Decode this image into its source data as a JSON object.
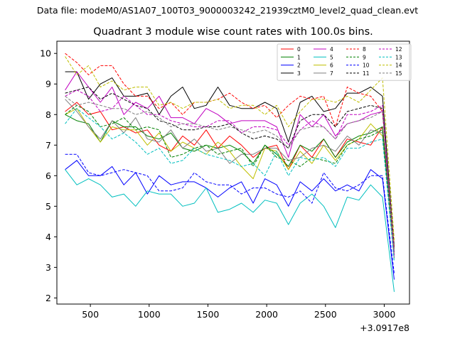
{
  "chart_data": {
    "type": "line",
    "suptitle": "Data file: modeM0/AS1A07_100T03_9000003242_21939cztM0_level2_quad_clean.evt",
    "title": "Quadrant 3 module wise count rates with 100.0s bins.",
    "xlabel": "",
    "ylabel": "",
    "x_offset_label": "+3.0917e8",
    "xlim": [
      215,
      3215
    ],
    "ylim": [
      1.8,
      10.4
    ],
    "xticks": [
      500,
      1000,
      1500,
      2000,
      2500,
      3000
    ],
    "yticks": [
      2,
      3,
      4,
      5,
      6,
      7,
      8,
      9,
      10
    ],
    "x": [
      285,
      385,
      485,
      585,
      685,
      785,
      885,
      985,
      1085,
      1185,
      1285,
      1385,
      1485,
      1585,
      1685,
      1785,
      1885,
      1985,
      2085,
      2185,
      2285,
      2385,
      2485,
      2585,
      2685,
      2785,
      2885,
      2985,
      3085
    ],
    "legend_position": "upper right",
    "series": [
      {
        "name": "0",
        "color": "#ff0000",
        "dash": "solid",
        "values": [
          8.1,
          8.4,
          8.0,
          8.1,
          7.5,
          7.6,
          7.4,
          7.5,
          7.0,
          6.8,
          7.3,
          7.0,
          7.5,
          6.9,
          7.3,
          7.0,
          6.6,
          6.9,
          7.0,
          6.2,
          7.0,
          6.6,
          7.2,
          6.6,
          7.2,
          7.1,
          7.0,
          7.6,
          3.6
        ]
      },
      {
        "name": "1",
        "color": "#008000",
        "dash": "solid",
        "values": [
          8.0,
          7.8,
          7.7,
          7.1,
          7.8,
          7.6,
          7.6,
          7.3,
          7.2,
          7.4,
          6.9,
          6.8,
          7.0,
          6.9,
          7.0,
          6.8,
          6.4,
          7.0,
          6.7,
          6.3,
          7.0,
          6.8,
          7.2,
          6.6,
          7.1,
          7.3,
          7.4,
          7.6,
          3.4
        ]
      },
      {
        "name": "2",
        "color": "#0000ff",
        "dash": "solid",
        "values": [
          6.2,
          6.5,
          6.0,
          6.0,
          6.3,
          5.7,
          6.1,
          5.4,
          6.0,
          5.7,
          5.8,
          5.8,
          5.6,
          5.3,
          5.6,
          5.8,
          5.1,
          5.9,
          5.7,
          5.0,
          5.8,
          5.5,
          5.9,
          5.5,
          5.7,
          5.5,
          6.2,
          5.9,
          2.6
        ]
      },
      {
        "name": "3",
        "color": "#000000",
        "dash": "solid",
        "values": [
          9.4,
          9.4,
          8.5,
          9.0,
          9.2,
          8.6,
          8.6,
          8.7,
          8.0,
          8.6,
          8.9,
          8.2,
          8.3,
          8.9,
          8.3,
          8.2,
          8.2,
          8.4,
          8.2,
          7.1,
          8.4,
          8.6,
          8.1,
          8.2,
          8.7,
          8.7,
          8.9,
          8.6,
          3.6
        ]
      },
      {
        "name": "4",
        "color": "#c000c0",
        "dash": "solid",
        "values": [
          8.8,
          9.4,
          8.9,
          8.4,
          8.9,
          8.0,
          8.4,
          8.2,
          8.6,
          7.9,
          7.9,
          7.7,
          8.2,
          8.0,
          7.7,
          7.8,
          7.8,
          7.8,
          7.6,
          6.6,
          8.0,
          7.6,
          8.0,
          7.3,
          7.7,
          7.8,
          8.0,
          8.1,
          3.3
        ]
      },
      {
        "name": "5",
        "color": "#00bfbf",
        "dash": "solid",
        "values": [
          6.2,
          5.7,
          5.9,
          5.7,
          5.3,
          5.4,
          5.0,
          5.5,
          5.4,
          5.4,
          5.0,
          5.1,
          5.6,
          4.8,
          4.9,
          5.1,
          4.8,
          5.2,
          5.1,
          4.4,
          5.1,
          5.4,
          5.0,
          4.3,
          5.3,
          5.2,
          5.7,
          5.3,
          2.2
        ]
      },
      {
        "name": "6",
        "color": "#bfbf00",
        "dash": "solid",
        "values": [
          8.0,
          8.2,
          7.6,
          7.1,
          7.6,
          7.5,
          7.5,
          7.0,
          7.4,
          6.8,
          7.1,
          6.9,
          6.7,
          7.1,
          6.8,
          6.3,
          5.9,
          6.9,
          6.8,
          6.2,
          6.8,
          6.4,
          7.0,
          6.5,
          7.0,
          7.2,
          7.7,
          7.3,
          3.6
        ]
      },
      {
        "name": "7",
        "color": "#7f7f7f",
        "dash": "solid",
        "values": [
          8.5,
          8.1,
          7.6,
          7.2,
          7.8,
          7.4,
          7.9,
          7.2,
          7.1,
          7.5,
          6.9,
          7.2,
          6.8,
          6.9,
          6.4,
          6.7,
          6.7,
          6.9,
          6.9,
          6.5,
          6.6,
          6.9,
          7.0,
          6.8,
          7.3,
          7.0,
          7.5,
          7.4,
          3.3
        ]
      },
      {
        "name": "8",
        "color": "#ff0000",
        "dash": "dashed",
        "values": [
          10.0,
          9.7,
          9.3,
          9.6,
          9.6,
          9.0,
          8.6,
          8.6,
          8.2,
          8.4,
          8.0,
          8.4,
          8.4,
          8.5,
          8.7,
          8.4,
          8.2,
          8.3,
          7.9,
          8.3,
          8.6,
          8.5,
          8.6,
          7.6,
          8.9,
          8.7,
          8.6,
          8.1,
          3.7
        ]
      },
      {
        "name": "9",
        "color": "#008000",
        "dash": "dashed",
        "values": [
          8.0,
          8.3,
          8.1,
          7.6,
          7.7,
          7.9,
          7.5,
          7.6,
          7.5,
          6.6,
          6.7,
          6.9,
          7.0,
          6.7,
          6.8,
          6.9,
          6.3,
          7.0,
          6.6,
          6.5,
          6.3,
          6.6,
          6.5,
          6.4,
          7.0,
          7.2,
          7.3,
          7.5,
          3.5
        ]
      },
      {
        "name": "10",
        "color": "#0000ff",
        "dash": "dashed",
        "values": [
          6.7,
          6.7,
          6.1,
          6.0,
          6.1,
          6.2,
          6.1,
          6.0,
          5.5,
          5.5,
          5.6,
          6.1,
          5.8,
          5.7,
          5.7,
          5.4,
          5.6,
          5.6,
          5.4,
          5.3,
          5.5,
          5.1,
          6.1,
          5.6,
          5.5,
          5.7,
          6.0,
          6.0,
          2.8
        ]
      },
      {
        "name": "11",
        "color": "#000000",
        "dash": "dashed",
        "values": [
          8.7,
          8.8,
          8.9,
          8.5,
          8.7,
          8.5,
          8.3,
          8.2,
          7.8,
          7.7,
          7.5,
          7.5,
          7.6,
          7.6,
          7.7,
          7.4,
          7.2,
          7.3,
          7.2,
          6.9,
          7.8,
          8.0,
          8.0,
          7.6,
          8.1,
          8.2,
          8.3,
          8.2,
          3.7
        ]
      },
      {
        "name": "12",
        "color": "#c000c0",
        "dash": "dashed",
        "values": [
          8.6,
          8.8,
          8.6,
          8.1,
          8.2,
          8.6,
          8.3,
          8.0,
          8.0,
          7.8,
          7.7,
          7.6,
          7.6,
          7.8,
          7.8,
          7.4,
          7.6,
          7.6,
          7.5,
          7.0,
          7.5,
          7.8,
          7.6,
          7.2,
          8.0,
          8.0,
          8.1,
          8.3,
          3.4
        ]
      },
      {
        "name": "13",
        "color": "#00bfbf",
        "dash": "dashed",
        "values": [
          7.7,
          8.2,
          7.9,
          7.6,
          7.2,
          7.4,
          7.1,
          6.7,
          6.9,
          6.4,
          6.5,
          6.9,
          6.7,
          6.6,
          6.5,
          6.3,
          6.4,
          6.0,
          6.8,
          6.0,
          6.6,
          6.5,
          6.6,
          6.3,
          6.9,
          6.9,
          7.1,
          7.2,
          3.2
        ]
      },
      {
        "name": "14",
        "color": "#bfbf00",
        "dash": "dashed",
        "values": [
          9.9,
          9.3,
          9.6,
          8.9,
          9.1,
          8.8,
          8.9,
          8.9,
          8.3,
          8.4,
          8.2,
          8.4,
          8.4,
          8.5,
          8.2,
          8.3,
          8.3,
          8.0,
          8.3,
          7.6,
          8.1,
          8.5,
          8.5,
          8.4,
          8.6,
          8.4,
          8.8,
          9.2,
          3.9
        ]
      },
      {
        "name": "15",
        "color": "#7f7f7f",
        "dash": "dashed",
        "values": [
          8.6,
          8.3,
          8.4,
          8.3,
          8.2,
          8.2,
          8.0,
          8.1,
          7.9,
          7.6,
          7.7,
          7.7,
          7.6,
          7.5,
          7.6,
          7.5,
          7.4,
          7.5,
          7.3,
          6.9,
          7.5,
          7.6,
          7.6,
          7.2,
          7.7,
          7.8,
          7.9,
          8.1,
          3.6
        ]
      }
    ]
  }
}
